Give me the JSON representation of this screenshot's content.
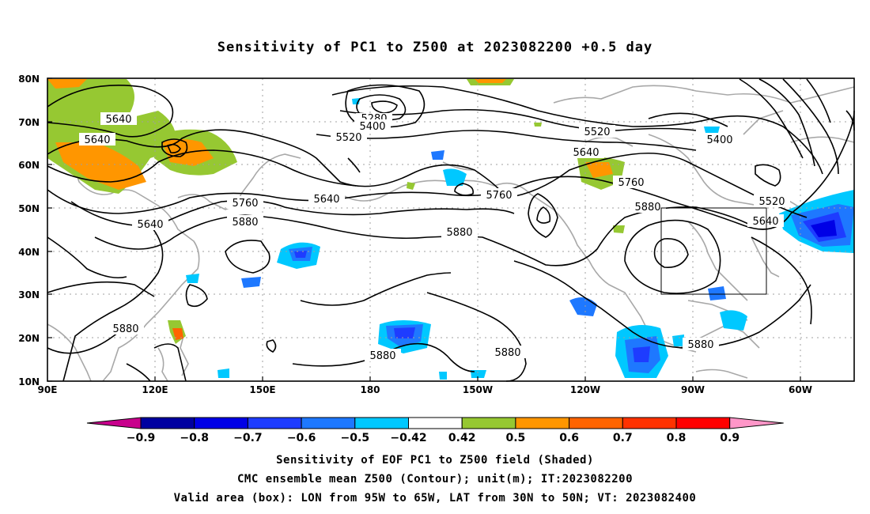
{
  "title": "Sensitivity of PC1 to Z500 at 2023082200 +0.5 day",
  "lat_labels": [
    "80N",
    "70N",
    "60N",
    "50N",
    "40N",
    "30N",
    "20N",
    "10N"
  ],
  "lon_labels": [
    "90E",
    "120E",
    "150E",
    "180",
    "150W",
    "120W",
    "90W",
    "60W"
  ],
  "contour_labels": {
    "l5640a": "5640",
    "l5640b": "5640",
    "l5640c": "5640",
    "l5640d": "5640",
    "l5640e": "5640",
    "l5640f": "5640",
    "l5280": "5280",
    "l5400a": "5400",
    "l5400b": "5400",
    "l5520a": "5520",
    "l5520b": "5520",
    "l5520c": "5520",
    "l5760a": "5760",
    "l5760b": "5760",
    "l5760c": "5760",
    "l5880a": "5880",
    "l5880b": "5880",
    "l5880c": "5880",
    "l5880d": "5880",
    "l5880e": "5880",
    "l5880f": "5880",
    "l5880g": "5880"
  },
  "colorbar": {
    "levels": [
      "-0.9",
      "-0.8",
      "-0.7",
      "-0.6",
      "-0.5",
      "-0.42",
      "0.42",
      "0.5",
      "0.6",
      "0.7",
      "0.8",
      "0.9"
    ],
    "colors": [
      "#c8008c",
      "#0000a0",
      "#0000e6",
      "#1e3cff",
      "#1e78ff",
      "#00c8ff",
      "#ffffff",
      "#96c832",
      "#ff9600",
      "#ff6400",
      "#ff3200",
      "#ff0000",
      "#ff96c8"
    ]
  },
  "captions": {
    "line1": "Sensitivity of EOF PC1 to Z500 field (Shaded)",
    "line2": "CMC ensemble mean Z500 (Contour); unit(m); IT:2023082200",
    "line3": "Valid area (box): LON from 95W to 65W, LAT from 30N to 50N; VT: 2023082400"
  }
}
